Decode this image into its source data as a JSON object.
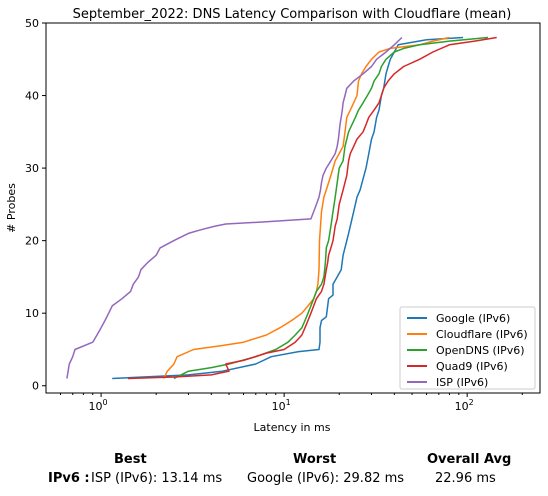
{
  "chart_data": {
    "type": "line",
    "title": "September_2022: DNS Latency Comparison with Cloudflare (mean)",
    "xlabel": "Latency in ms",
    "ylabel": "# Probes",
    "xscale": "log",
    "xlim": [
      0.5,
      250
    ],
    "ylim": [
      -1,
      50
    ],
    "x_ticks": [
      {
        "value": 1,
        "base": "10",
        "exp": "0"
      },
      {
        "value": 10,
        "base": "10",
        "exp": "1"
      },
      {
        "value": 100,
        "base": "10",
        "exp": "2"
      }
    ],
    "y_ticks": [
      0,
      10,
      20,
      30,
      40,
      50
    ],
    "legend_position": "lower-right",
    "grid": false,
    "series": [
      {
        "name": "Google (IPv6)",
        "color": "#1f77b4",
        "points": [
          [
            1.15,
            1
          ],
          [
            3,
            1.5
          ],
          [
            4.6,
            2
          ],
          [
            7,
            3
          ],
          [
            8.5,
            4
          ],
          [
            12,
            4.7
          ],
          [
            15.5,
            5
          ],
          [
            15.7,
            6
          ],
          [
            15.7,
            8
          ],
          [
            16,
            9
          ],
          [
            17,
            9.5
          ],
          [
            17.3,
            11
          ],
          [
            17.5,
            12
          ],
          [
            18.5,
            12.5
          ],
          [
            18.5,
            14
          ],
          [
            19.5,
            15
          ],
          [
            20.5,
            16
          ],
          [
            21,
            18
          ],
          [
            22,
            20
          ],
          [
            22.5,
            21
          ],
          [
            23,
            22
          ],
          [
            24,
            24
          ],
          [
            25,
            26
          ],
          [
            26,
            27
          ],
          [
            28,
            30
          ],
          [
            29,
            32
          ],
          [
            30,
            34
          ],
          [
            31,
            35
          ],
          [
            32,
            37
          ],
          [
            33,
            38
          ],
          [
            34,
            40
          ],
          [
            35,
            41
          ],
          [
            36,
            43
          ],
          [
            37,
            44
          ],
          [
            38,
            45
          ],
          [
            40,
            46
          ],
          [
            42,
            47
          ],
          [
            60,
            47.7
          ],
          [
            95,
            48
          ]
        ]
      },
      {
        "name": "Cloudflare (IPv6)",
        "color": "#ff7f0e",
        "points": [
          [
            2.2,
            1
          ],
          [
            2.3,
            2
          ],
          [
            2.5,
            3
          ],
          [
            2.6,
            4
          ],
          [
            3.2,
            5
          ],
          [
            4.5,
            5.5
          ],
          [
            6,
            6
          ],
          [
            8,
            7
          ],
          [
            9.5,
            8
          ],
          [
            11,
            9
          ],
          [
            12.5,
            10
          ],
          [
            13.5,
            11
          ],
          [
            14.5,
            12
          ],
          [
            15,
            13
          ],
          [
            15.3,
            14
          ],
          [
            15.5,
            16
          ],
          [
            15.6,
            20
          ],
          [
            15.8,
            22
          ],
          [
            16,
            24
          ],
          [
            16.5,
            26
          ],
          [
            17,
            27
          ],
          [
            18,
            29
          ],
          [
            19,
            31
          ],
          [
            20,
            32
          ],
          [
            21,
            33
          ],
          [
            21.5,
            35
          ],
          [
            22,
            37
          ],
          [
            23,
            38
          ],
          [
            24,
            39
          ],
          [
            25,
            40
          ],
          [
            25.5,
            42
          ],
          [
            26.5,
            43
          ],
          [
            28,
            44
          ],
          [
            30,
            45
          ],
          [
            33,
            46
          ],
          [
            38,
            46.5
          ],
          [
            55,
            47
          ],
          [
            65,
            47.5
          ],
          [
            80,
            48
          ]
        ]
      },
      {
        "name": "OpenDNS (IPv6)",
        "color": "#2ca02c",
        "points": [
          [
            2.5,
            1
          ],
          [
            3,
            2
          ],
          [
            4,
            2.5
          ],
          [
            5,
            3
          ],
          [
            7,
            4
          ],
          [
            9,
            5
          ],
          [
            10.5,
            6
          ],
          [
            11.5,
            7
          ],
          [
            12.5,
            8
          ],
          [
            13,
            9
          ],
          [
            13.5,
            10
          ],
          [
            14,
            11
          ],
          [
            14.5,
            12
          ],
          [
            15,
            13
          ],
          [
            16,
            14
          ],
          [
            16.5,
            15
          ],
          [
            16.8,
            17
          ],
          [
            17,
            19
          ],
          [
            17.5,
            20
          ],
          [
            18,
            22
          ],
          [
            18.5,
            24
          ],
          [
            19,
            26
          ],
          [
            19.5,
            28
          ],
          [
            20,
            30
          ],
          [
            21,
            31
          ],
          [
            21.5,
            33
          ],
          [
            22.5,
            35
          ],
          [
            23.5,
            36
          ],
          [
            24.5,
            37
          ],
          [
            25.5,
            38
          ],
          [
            27,
            39
          ],
          [
            28.5,
            40
          ],
          [
            30,
            41
          ],
          [
            31,
            42
          ],
          [
            33,
            43
          ],
          [
            34,
            44
          ],
          [
            36,
            45
          ],
          [
            40,
            46
          ],
          [
            45,
            46.5
          ],
          [
            55,
            47
          ],
          [
            80,
            47.5
          ],
          [
            130,
            48
          ]
        ]
      },
      {
        "name": "Quad9 (IPv6)",
        "color": "#d62728",
        "points": [
          [
            1.4,
            1
          ],
          [
            2.5,
            1.2
          ],
          [
            4,
            1.5
          ],
          [
            5,
            2
          ],
          [
            4.8,
            3
          ],
          [
            6,
            3.5
          ],
          [
            8,
            4.5
          ],
          [
            10,
            5
          ],
          [
            11.5,
            6
          ],
          [
            12.5,
            7
          ],
          [
            13,
            8
          ],
          [
            13.5,
            9
          ],
          [
            14,
            10
          ],
          [
            14.5,
            11
          ],
          [
            15,
            12
          ],
          [
            16,
            13
          ],
          [
            16.5,
            14
          ],
          [
            17,
            16
          ],
          [
            17.3,
            17
          ],
          [
            17.5,
            18
          ],
          [
            18,
            19
          ],
          [
            18.5,
            20
          ],
          [
            19,
            22
          ],
          [
            19.5,
            23
          ],
          [
            20,
            25
          ],
          [
            21,
            27
          ],
          [
            22,
            29
          ],
          [
            22.5,
            31
          ],
          [
            23,
            32
          ],
          [
            24,
            33
          ],
          [
            25,
            34
          ],
          [
            27,
            35
          ],
          [
            28,
            36
          ],
          [
            29,
            37
          ],
          [
            31,
            38
          ],
          [
            33,
            39
          ],
          [
            34,
            40
          ],
          [
            35,
            41
          ],
          [
            37,
            42
          ],
          [
            40,
            43
          ],
          [
            45,
            44
          ],
          [
            55,
            45
          ],
          [
            65,
            46
          ],
          [
            80,
            47
          ],
          [
            110,
            47.5
          ],
          [
            145,
            48
          ]
        ]
      },
      {
        "name": "ISP (IPv6)",
        "color": "#9467bd",
        "points": [
          [
            0.65,
            1
          ],
          [
            0.66,
            2
          ],
          [
            0.67,
            3
          ],
          [
            0.7,
            4
          ],
          [
            0.72,
            5
          ],
          [
            0.9,
            6
          ],
          [
            0.95,
            7
          ],
          [
            1.0,
            8
          ],
          [
            1.05,
            9
          ],
          [
            1.1,
            10
          ],
          [
            1.15,
            11
          ],
          [
            1.3,
            12
          ],
          [
            1.45,
            13
          ],
          [
            1.5,
            14
          ],
          [
            1.6,
            15
          ],
          [
            1.65,
            16
          ],
          [
            1.8,
            17
          ],
          [
            2.0,
            18
          ],
          [
            2.1,
            19
          ],
          [
            2.5,
            20
          ],
          [
            3,
            21
          ],
          [
            3.5,
            21.5
          ],
          [
            4.2,
            22
          ],
          [
            4.8,
            22.3
          ],
          [
            8,
            22.6
          ],
          [
            14,
            23
          ],
          [
            14.5,
            24
          ],
          [
            15,
            25
          ],
          [
            15.5,
            26
          ],
          [
            15.8,
            27
          ],
          [
            16,
            28
          ],
          [
            16.3,
            29
          ],
          [
            17,
            30
          ],
          [
            18,
            31
          ],
          [
            19,
            32
          ],
          [
            19.5,
            33
          ],
          [
            19.8,
            34
          ],
          [
            20,
            35
          ],
          [
            20.2,
            36
          ],
          [
            20.5,
            37
          ],
          [
            20.8,
            38
          ],
          [
            21,
            39
          ],
          [
            21.5,
            40
          ],
          [
            22,
            41
          ],
          [
            24,
            42
          ],
          [
            27,
            43
          ],
          [
            30,
            44
          ],
          [
            32,
            45
          ],
          [
            36,
            46
          ],
          [
            40,
            47
          ],
          [
            44,
            48
          ]
        ]
      }
    ]
  },
  "summary": {
    "best_header": "Best",
    "worst_header": "Worst",
    "avg_header": "Overall Avg",
    "row_label": "IPv6 :",
    "best_value": "ISP (IPv6): 13.14 ms",
    "worst_value": "Google (IPv6): 29.82 ms",
    "avg_value": "22.96 ms"
  }
}
